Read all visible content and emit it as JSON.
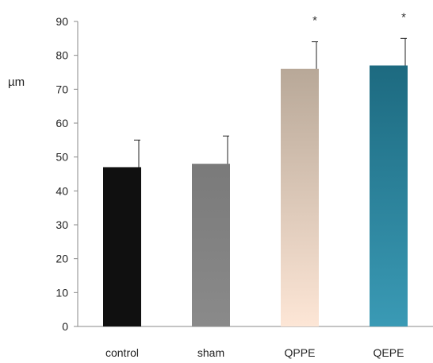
{
  "chart_data": {
    "type": "bar",
    "ylabel": "µm",
    "xlabel": "",
    "ylim": [
      0,
      90
    ],
    "yticks": [
      0,
      10,
      20,
      30,
      40,
      50,
      60,
      70,
      80,
      90
    ],
    "grid": false,
    "categories": [
      "control",
      "sham",
      "QPPE",
      "QEPE"
    ],
    "values": [
      47,
      48,
      76,
      77
    ],
    "errors": [
      8,
      8.2,
      8,
      8
    ],
    "annotations": [
      "",
      "",
      "*",
      "*"
    ],
    "colors": [
      {
        "top": "#101010",
        "bottom": "#101010"
      },
      {
        "top": "#7a7a7a",
        "bottom": "#8a8a8a"
      },
      {
        "top": "#b8a898",
        "bottom": "#fde6d6"
      },
      {
        "top": "#1d6a80",
        "bottom": "#3a9ab5"
      }
    ]
  }
}
